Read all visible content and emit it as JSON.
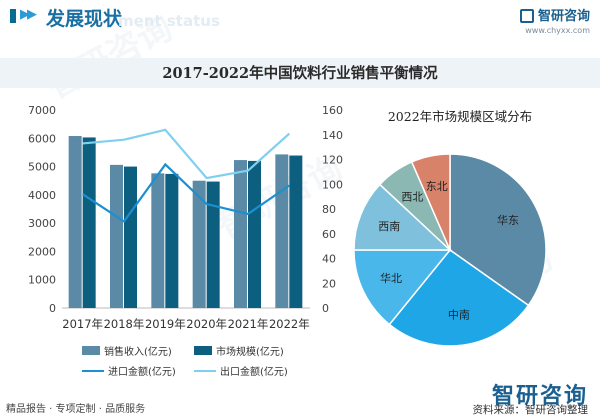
{
  "header": {
    "title": "发展现状",
    "ghost_text": "ment status"
  },
  "brand": {
    "name": "智研咨询",
    "url": "www.chyxx.com"
  },
  "chart_title": "2017-2022年中国饮料行业销售平衡情况",
  "pie_title": "2022年市场规模区域分布",
  "legend": {
    "sales": "销售收入(亿元)",
    "market": "市场规模(亿元)",
    "import": "进口金额(亿元)",
    "export": "出口金额(亿元)"
  },
  "colors": {
    "sales": "#5a8aa6",
    "market": "#0d5f7f",
    "import": "#1b8fcf",
    "export": "#7fd0ee",
    "pie": [
      "#5a8aa6",
      "#1fa6e6",
      "#4ab7ea",
      "#7fc1dd",
      "#8cb8b3",
      "#d9826a"
    ]
  },
  "chart_data": [
    {
      "type": "bar",
      "categories": [
        "2017年",
        "2018年",
        "2019年",
        "2020年",
        "2021年",
        "2022年"
      ],
      "series": [
        {
          "name": "销售收入(亿元)",
          "type": "bar",
          "axis": "left",
          "values": [
            6080,
            5060,
            4760,
            4500,
            5230,
            5430
          ]
        },
        {
          "name": "市场规模(亿元)",
          "type": "bar",
          "axis": "left",
          "values": [
            6030,
            5000,
            4740,
            4470,
            5200,
            5390
          ]
        },
        {
          "name": "进口金额(亿元)",
          "type": "line",
          "axis": "right",
          "values": [
            92,
            70,
            116,
            84,
            76,
            99
          ]
        },
        {
          "name": "出口金额(亿元)",
          "type": "line",
          "axis": "right",
          "values": [
            133,
            136,
            144,
            105,
            111,
            141
          ]
        }
      ],
      "y_left": {
        "ylim": [
          0,
          7000
        ],
        "ticks": [
          "0",
          "1000",
          "2000",
          "3000",
          "4000",
          "5000",
          "6000",
          "7000"
        ]
      },
      "y_right": {
        "ylim": [
          0,
          160
        ],
        "ticks": [
          "0",
          "20",
          "40",
          "60",
          "80",
          "100",
          "120",
          "140",
          "160"
        ]
      },
      "grid": false
    },
    {
      "type": "pie",
      "labels": [
        "华东",
        "中南",
        "华北",
        "西南",
        "西北",
        "东北"
      ],
      "values": [
        32,
        24,
        13,
        11,
        6,
        6
      ]
    }
  ]
}
